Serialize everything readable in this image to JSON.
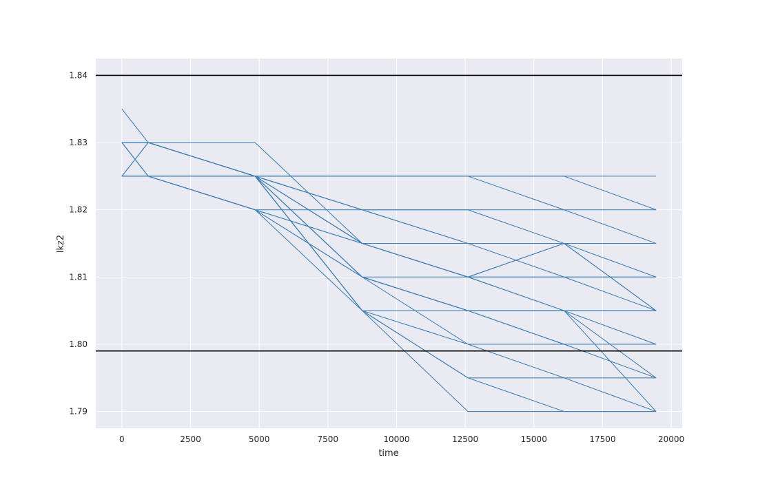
{
  "chart_data": {
    "type": "line",
    "title": "",
    "xlabel": "time",
    "ylabel": "lkz2",
    "xlim": [
      -950,
      20400
    ],
    "ylim": [
      1.7875,
      1.8425
    ],
    "xticks": [
      0,
      2500,
      5000,
      7500,
      10000,
      12500,
      15000,
      17500,
      20000
    ],
    "xtick_labels": [
      "0",
      "2500",
      "5000",
      "7500",
      "10000",
      "12500",
      "15000",
      "17500",
      "20000"
    ],
    "yticks": [
      1.79,
      1.8,
      1.81,
      1.82,
      1.83,
      1.84
    ],
    "ytick_labels": [
      "1.79",
      "1.80",
      "1.81",
      "1.82",
      "1.83",
      "1.84"
    ],
    "grid": true,
    "style": "darkgrid",
    "series_color": "#4682b4",
    "reference_color": "#000000",
    "reference_lines": [
      {
        "y": 1.84
      },
      {
        "y": 1.799
      }
    ],
    "x": [
      0,
      960,
      4850,
      8750,
      12600,
      16100,
      19450
    ],
    "series": [
      {
        "values": [
          1.835,
          1.83,
          1.83,
          1.815,
          1.81,
          1.815,
          1.81
        ]
      },
      {
        "values": [
          1.83,
          1.83,
          1.825,
          1.825,
          1.825,
          1.825,
          1.825
        ]
      },
      {
        "values": [
          1.83,
          1.83,
          1.825,
          1.825,
          1.825,
          1.825,
          1.82
        ]
      },
      {
        "values": [
          1.83,
          1.825,
          1.825,
          1.825,
          1.825,
          1.82,
          1.815
        ]
      },
      {
        "values": [
          1.825,
          1.825,
          1.825,
          1.82,
          1.82,
          1.82,
          1.82
        ]
      },
      {
        "values": [
          1.825,
          1.83,
          1.825,
          1.82,
          1.815,
          1.815,
          1.815
        ]
      },
      {
        "values": [
          1.83,
          1.83,
          1.825,
          1.82,
          1.815,
          1.81,
          1.81
        ]
      },
      {
        "values": [
          1.825,
          1.825,
          1.82,
          1.82,
          1.82,
          1.815,
          1.805
        ]
      },
      {
        "values": [
          1.825,
          1.825,
          1.82,
          1.815,
          1.815,
          1.815,
          1.815
        ]
      },
      {
        "values": [
          1.825,
          1.825,
          1.825,
          1.815,
          1.81,
          1.81,
          1.81
        ]
      },
      {
        "values": [
          1.83,
          1.83,
          1.825,
          1.81,
          1.81,
          1.81,
          1.805
        ]
      },
      {
        "values": [
          1.83,
          1.83,
          1.825,
          1.81,
          1.805,
          1.805,
          1.805
        ]
      },
      {
        "values": [
          1.825,
          1.825,
          1.82,
          1.81,
          1.805,
          1.8,
          1.8
        ]
      },
      {
        "values": [
          1.825,
          1.83,
          1.825,
          1.805,
          1.805,
          1.805,
          1.805
        ]
      },
      {
        "values": [
          1.825,
          1.825,
          1.825,
          1.805,
          1.8,
          1.8,
          1.8
        ]
      },
      {
        "values": [
          1.83,
          1.825,
          1.825,
          1.805,
          1.795,
          1.795,
          1.795
        ]
      },
      {
        "values": [
          1.825,
          1.825,
          1.82,
          1.805,
          1.79,
          1.79,
          1.79
        ]
      },
      {
        "values": [
          1.83,
          1.83,
          1.825,
          1.805,
          1.795,
          1.79,
          1.79
        ]
      },
      {
        "values": [
          1.825,
          1.825,
          1.82,
          1.81,
          1.8,
          1.795,
          1.79
        ]
      },
      {
        "values": [
          1.83,
          1.825,
          1.82,
          1.815,
          1.81,
          1.805,
          1.8
        ]
      },
      {
        "values": [
          1.825,
          1.825,
          1.825,
          1.815,
          1.81,
          1.805,
          1.79
        ]
      },
      {
        "values": [
          1.83,
          1.83,
          1.825,
          1.81,
          1.805,
          1.8,
          1.795
        ]
      },
      {
        "values": [
          1.825,
          1.825,
          1.825,
          1.815,
          1.81,
          1.815,
          1.805
        ]
      },
      {
        "values": [
          1.825,
          1.825,
          1.825,
          1.81,
          1.805,
          1.805,
          1.795
        ]
      }
    ]
  }
}
